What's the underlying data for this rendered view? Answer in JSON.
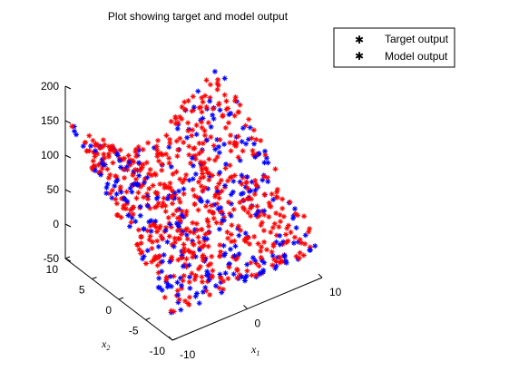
{
  "chart_data": {
    "type": "scatter",
    "title": "Plot showing target and model output",
    "projection": "3d",
    "legend_position": "top-right",
    "grid": false,
    "x1_label": "x",
    "x1_sub": "1",
    "x2_label": "x",
    "x2_sub": "2",
    "zlim": [
      -50,
      200
    ],
    "x1_lim": [
      -10,
      10
    ],
    "x2_lim": [
      -10,
      10
    ],
    "z_ticks": [
      "200",
      "150",
      "100",
      "50",
      "0",
      "-50"
    ],
    "x1_ticks": [
      "-10",
      "0",
      "10"
    ],
    "x2_ticks": [
      "10",
      "5",
      "0",
      "-5",
      "-10"
    ],
    "series": [
      {
        "name": "Target output",
        "color": "#ff0000",
        "marker": "*"
      },
      {
        "name": "Model output",
        "color": "#0000ff",
        "marker": "*"
      }
    ],
    "surface_description_values": {
      "corner_values": [
        {
          "x1": -10,
          "x2": 10,
          "z": 150
        },
        {
          "x1": 10,
          "x2": 10,
          "z": 150
        },
        {
          "x1": -10,
          "x2": -10,
          "z": 0
        },
        {
          "x1": 0,
          "x2": 0,
          "z": -10
        }
      ]
    }
  }
}
